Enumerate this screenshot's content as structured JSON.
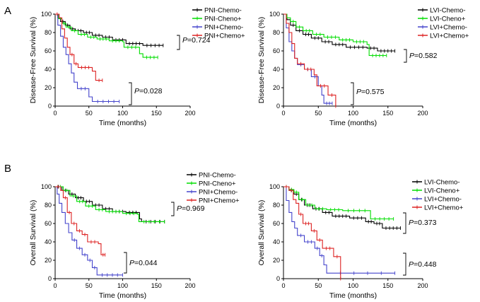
{
  "panel_labels": [
    "A",
    "B"
  ],
  "chart_data": [
    {
      "type": "line",
      "subtype": "kaplan-meier",
      "title": "",
      "xlabel": "Time (months)",
      "ylabel": "Disease-Free Survival (%)",
      "xlim": [
        0,
        200
      ],
      "ylim": [
        0,
        100
      ],
      "xticks": [
        0,
        50,
        100,
        150,
        200
      ],
      "yticks": [
        0,
        20,
        40,
        60,
        80,
        100
      ],
      "series": [
        {
          "name": "PNI-Chemo-",
          "color": "#000000",
          "steps": [
            [
              0,
              100
            ],
            [
              4,
              96
            ],
            [
              8,
              92
            ],
            [
              15,
              88
            ],
            [
              22,
              84
            ],
            [
              30,
              82
            ],
            [
              42,
              80
            ],
            [
              55,
              77
            ],
            [
              70,
              75
            ],
            [
              85,
              72
            ],
            [
              105,
              68
            ],
            [
              130,
              66
            ],
            [
              160,
              66
            ]
          ]
        },
        {
          "name": "PNI-Cheno+",
          "color": "#00dd00",
          "steps": [
            [
              0,
              100
            ],
            [
              5,
              95
            ],
            [
              10,
              90
            ],
            [
              16,
              86
            ],
            [
              24,
              82
            ],
            [
              34,
              78
            ],
            [
              48,
              75
            ],
            [
              62,
              73
            ],
            [
              80,
              71
            ],
            [
              100,
              70
            ],
            [
              102,
              64
            ],
            [
              125,
              57
            ],
            [
              130,
              53
            ],
            [
              152,
              53
            ]
          ]
        },
        {
          "name": "PNI+Chemo-",
          "color": "#4444cc",
          "steps": [
            [
              0,
              100
            ],
            [
              4,
              88
            ],
            [
              8,
              76
            ],
            [
              12,
              64
            ],
            [
              16,
              56
            ],
            [
              20,
              46
            ],
            [
              24,
              36
            ],
            [
              28,
              26
            ],
            [
              33,
              19
            ],
            [
              50,
              10
            ],
            [
              55,
              5
            ],
            [
              95,
              5
            ]
          ]
        },
        {
          "name": "PNI+Chemo+",
          "color": "#dd2222",
          "steps": [
            [
              0,
              100
            ],
            [
              6,
              96
            ],
            [
              10,
              84
            ],
            [
              14,
              74
            ],
            [
              18,
              64
            ],
            [
              22,
              56
            ],
            [
              28,
              46
            ],
            [
              34,
              42
            ],
            [
              55,
              38
            ],
            [
              60,
              28
            ],
            [
              70,
              28
            ]
          ]
        }
      ],
      "annotations": [
        {
          "text_prefix": "P",
          "text": "=0.724",
          "pair": [
            0,
            1
          ]
        },
        {
          "text_prefix": "P",
          "text": "=0.028",
          "pair": [
            2,
            3
          ]
        }
      ]
    },
    {
      "type": "line",
      "subtype": "kaplan-meier",
      "title": "",
      "xlabel": "Time (months)",
      "ylabel": "Disease-Free Survival (%)",
      "xlim": [
        0,
        200
      ],
      "ylim": [
        0,
        100
      ],
      "xticks": [
        0,
        50,
        100,
        150,
        200
      ],
      "yticks": [
        0,
        20,
        40,
        60,
        80,
        100
      ],
      "series": [
        {
          "name": "LVI-Chemo-",
          "color": "#000000",
          "steps": [
            [
              0,
              100
            ],
            [
              5,
              94
            ],
            [
              10,
              88
            ],
            [
              18,
              82
            ],
            [
              28,
              78
            ],
            [
              40,
              74
            ],
            [
              55,
              70
            ],
            [
              70,
              67
            ],
            [
              90,
              64
            ],
            [
              120,
              63
            ],
            [
              135,
              60
            ],
            [
              160,
              60
            ]
          ]
        },
        {
          "name": "LVI-Cheno+",
          "color": "#00dd00",
          "steps": [
            [
              0,
              100
            ],
            [
              5,
              96
            ],
            [
              10,
              92
            ],
            [
              18,
              86
            ],
            [
              28,
              82
            ],
            [
              42,
              78
            ],
            [
              58,
              75
            ],
            [
              80,
              72
            ],
            [
              100,
              70
            ],
            [
              120,
              67
            ],
            [
              123,
              55
            ],
            [
              148,
              55
            ]
          ]
        },
        {
          "name": "LVI+Chemo-",
          "color": "#4444cc",
          "steps": [
            [
              0,
              100
            ],
            [
              4,
              85
            ],
            [
              8,
              70
            ],
            [
              12,
              60
            ],
            [
              16,
              52
            ],
            [
              20,
              45
            ],
            [
              30,
              40
            ],
            [
              40,
              32
            ],
            [
              50,
              22
            ],
            [
              55,
              12
            ],
            [
              58,
              3
            ],
            [
              70,
              3
            ]
          ]
        },
        {
          "name": "LVI+Chemo+",
          "color": "#dd2222",
          "steps": [
            [
              0,
              100
            ],
            [
              4,
              90
            ],
            [
              8,
              80
            ],
            [
              12,
              68
            ],
            [
              16,
              52
            ],
            [
              20,
              46
            ],
            [
              30,
              40
            ],
            [
              44,
              34
            ],
            [
              48,
              22
            ],
            [
              64,
              12
            ],
            [
              75,
              0
            ]
          ]
        }
      ],
      "annotations": [
        {
          "text_prefix": "P",
          "text": "=0.582",
          "pair": [
            0,
            1
          ]
        },
        {
          "text_prefix": "P",
          "text": "=0.575",
          "pair": [
            2,
            3
          ]
        }
      ]
    },
    {
      "type": "line",
      "subtype": "kaplan-meier",
      "title": "",
      "xlabel": "Time (months)",
      "ylabel": "Overall Survival (%)",
      "xlim": [
        0,
        200
      ],
      "ylim": [
        0,
        100
      ],
      "xticks": [
        0,
        50,
        100,
        150,
        200
      ],
      "yticks": [
        0,
        20,
        40,
        60,
        80,
        100
      ],
      "series": [
        {
          "name": "PNI-Chemo-",
          "color": "#000000",
          "steps": [
            [
              0,
              100
            ],
            [
              10,
              96
            ],
            [
              20,
              92
            ],
            [
              30,
              88
            ],
            [
              42,
              84
            ],
            [
              55,
              80
            ],
            [
              70,
              76
            ],
            [
              85,
              73
            ],
            [
              105,
              72
            ],
            [
              125,
              65
            ],
            [
              128,
              62
            ],
            [
              162,
              62
            ]
          ]
        },
        {
          "name": "PNI-Cheno+",
          "color": "#00dd00",
          "steps": [
            [
              0,
              100
            ],
            [
              12,
              96
            ],
            [
              22,
              90
            ],
            [
              32,
              84
            ],
            [
              45,
              79
            ],
            [
              60,
              75
            ],
            [
              75,
              73
            ],
            [
              100,
              71
            ],
            [
              122,
              70
            ],
            [
              124,
              62
            ],
            [
              162,
              62
            ]
          ]
        },
        {
          "name": "PNI+Chemo-",
          "color": "#4444cc",
          "steps": [
            [
              0,
              100
            ],
            [
              3,
              92
            ],
            [
              6,
              82
            ],
            [
              10,
              72
            ],
            [
              15,
              60
            ],
            [
              20,
              50
            ],
            [
              25,
              42
            ],
            [
              32,
              33
            ],
            [
              40,
              26
            ],
            [
              48,
              20
            ],
            [
              55,
              12
            ],
            [
              62,
              4
            ],
            [
              100,
              4
            ]
          ]
        },
        {
          "name": "PNI+Chemo+",
          "color": "#dd2222",
          "steps": [
            [
              0,
              100
            ],
            [
              8,
              96
            ],
            [
              12,
              88
            ],
            [
              18,
              72
            ],
            [
              24,
              60
            ],
            [
              32,
              52
            ],
            [
              40,
              48
            ],
            [
              48,
              40
            ],
            [
              64,
              38
            ],
            [
              68,
              26
            ],
            [
              74,
              26
            ]
          ]
        }
      ],
      "annotations": [
        {
          "text_prefix": "P",
          "text": "=0.969",
          "pair": [
            0,
            1
          ]
        },
        {
          "text_prefix": "P",
          "text": "=0.044",
          "pair": [
            2,
            3
          ]
        }
      ]
    },
    {
      "type": "line",
      "subtype": "kaplan-meier",
      "title": "",
      "xlabel": "Time (months)",
      "ylabel": "Overall Survival (%)",
      "xlim": [
        0,
        200
      ],
      "ylim": [
        0,
        100
      ],
      "xticks": [
        0,
        50,
        100,
        150,
        200
      ],
      "yticks": [
        0,
        20,
        40,
        60,
        80,
        100
      ],
      "series": [
        {
          "name": "LVI-Chemo-",
          "color": "#000000",
          "steps": [
            [
              0,
              100
            ],
            [
              8,
              96
            ],
            [
              15,
              92
            ],
            [
              22,
              86
            ],
            [
              30,
              80
            ],
            [
              42,
              76
            ],
            [
              56,
              72
            ],
            [
              70,
              68
            ],
            [
              95,
              66
            ],
            [
              118,
              62
            ],
            [
              130,
              60
            ],
            [
              142,
              55
            ],
            [
              168,
              55
            ]
          ]
        },
        {
          "name": "LVI-Cheno+",
          "color": "#00dd00",
          "steps": [
            [
              0,
              100
            ],
            [
              8,
              97
            ],
            [
              15,
              94
            ],
            [
              22,
              86
            ],
            [
              32,
              80
            ],
            [
              45,
              76
            ],
            [
              62,
              75
            ],
            [
              85,
              74
            ],
            [
              125,
              65
            ],
            [
              158,
              65
            ]
          ]
        },
        {
          "name": "LVI+Chemo-",
          "color": "#4444cc",
          "steps": [
            [
              0,
              100
            ],
            [
              4,
              85
            ],
            [
              8,
              72
            ],
            [
              12,
              62
            ],
            [
              16,
              55
            ],
            [
              20,
              47
            ],
            [
              30,
              40
            ],
            [
              45,
              33
            ],
            [
              52,
              25
            ],
            [
              58,
              15
            ],
            [
              62,
              6
            ],
            [
              160,
              6
            ]
          ]
        },
        {
          "name": "LVI+Chemo+",
          "color": "#dd2222",
          "steps": [
            [
              0,
              100
            ],
            [
              8,
              96
            ],
            [
              14,
              86
            ],
            [
              18,
              82
            ],
            [
              22,
              70
            ],
            [
              28,
              60
            ],
            [
              40,
              52
            ],
            [
              48,
              42
            ],
            [
              56,
              33
            ],
            [
              72,
              24
            ],
            [
              82,
              0
            ]
          ]
        }
      ],
      "annotations": [
        {
          "text_prefix": "P",
          "text": "=0.373",
          "pair": [
            0,
            1
          ]
        },
        {
          "text_prefix": "P",
          "text": "=0.448",
          "pair": [
            2,
            3
          ]
        }
      ]
    }
  ]
}
